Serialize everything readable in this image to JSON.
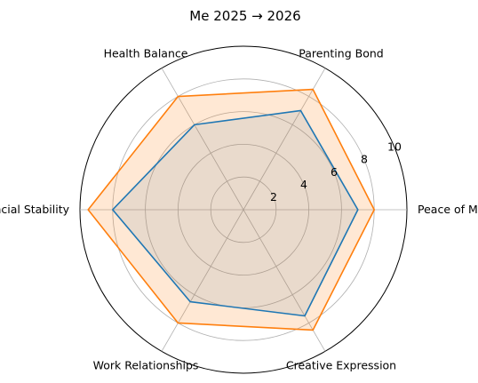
{
  "chart_data": {
    "type": "radar",
    "title": "Me 2025 → 2026",
    "categories": [
      "Peace of Mind",
      "Parenting Bond",
      "Health Balance",
      "Financial Stability",
      "Work Relationships",
      "Creative Expression"
    ],
    "rlim": [
      0,
      10
    ],
    "rticks": [
      2,
      4,
      6,
      8,
      10
    ],
    "grid": true,
    "series": [
      {
        "values": [
          7,
          7,
          6,
          8,
          6.5,
          7.5
        ],
        "color": "#1f77b4",
        "fill": "#1f77b4",
        "fill_opacity": 0.12
      },
      {
        "values": [
          8,
          8.5,
          8,
          9.5,
          8,
          8.5
        ],
        "color": "#ff7f0e",
        "fill": "#ff7f0e",
        "fill_opacity": 0.18
      }
    ]
  }
}
